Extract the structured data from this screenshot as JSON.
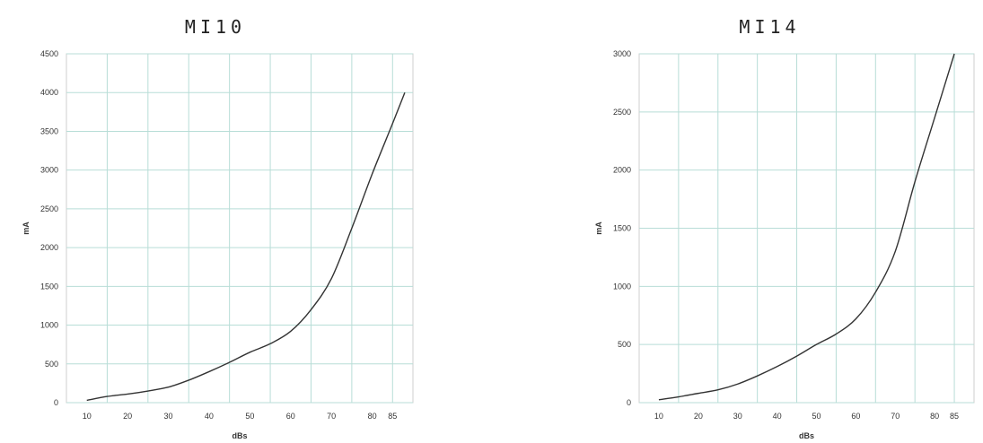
{
  "chart_data": [
    {
      "type": "line",
      "title": "MI10",
      "xlabel": "dBs",
      "ylabel": "mA",
      "x": [
        10,
        15,
        20,
        25,
        30,
        35,
        40,
        45,
        50,
        55,
        60,
        65,
        70,
        75,
        80,
        85
      ],
      "series": [
        {
          "values": [
            30,
            80,
            110,
            150,
            200,
            290,
            400,
            520,
            650,
            760,
            920,
            1200,
            1600,
            2250,
            2950,
            3600
          ]
        }
      ],
      "end_point": {
        "x": 88,
        "y": 4000
      },
      "xticks": [
        10,
        20,
        30,
        40,
        50,
        60,
        70,
        80,
        85
      ],
      "yticks": [
        0,
        500,
        1000,
        1500,
        2000,
        2500,
        3000,
        3500,
        4000,
        4500
      ],
      "xlim": [
        5,
        90
      ],
      "ylim": [
        0,
        4500
      ],
      "grid": true,
      "line_color": "#333333",
      "grid_color": "#b8ddd7"
    },
    {
      "type": "line",
      "title": "MI14",
      "xlabel": "dBs",
      "ylabel": "mA",
      "x": [
        10,
        15,
        20,
        25,
        30,
        35,
        40,
        45,
        50,
        55,
        60,
        65,
        70,
        75,
        80,
        85
      ],
      "series": [
        {
          "values": [
            25,
            50,
            80,
            110,
            160,
            230,
            310,
            400,
            500,
            590,
            720,
            950,
            1300,
            1900,
            2450,
            3000
          ]
        }
      ],
      "xticks": [
        10,
        20,
        30,
        40,
        50,
        60,
        70,
        80,
        85
      ],
      "yticks": [
        0,
        500,
        1000,
        1500,
        2000,
        2500,
        3000
      ],
      "xlim": [
        5,
        90
      ],
      "ylim": [
        0,
        3000
      ],
      "grid": true,
      "line_color": "#333333",
      "grid_color": "#b8ddd7"
    }
  ]
}
